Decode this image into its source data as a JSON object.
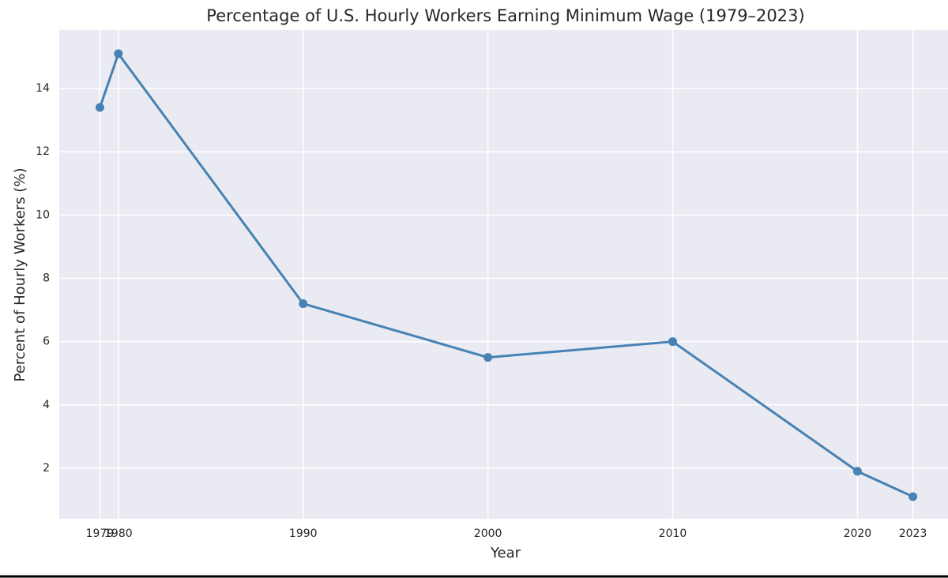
{
  "chart_data": {
    "type": "line",
    "title": "Percentage of U.S. Hourly Workers Earning Minimum Wage (1979–2023)",
    "x_label": "Year",
    "y_label": "Percent of Hourly Workers (%)",
    "x": [
      1979,
      1980,
      1990,
      2000,
      2010,
      2020,
      2023
    ],
    "series": [
      {
        "name": "Percent of Hourly Workers",
        "color": "#4682b4",
        "values": [
          13.4,
          15.1,
          7.2,
          5.5,
          6.0,
          1.9,
          1.1
        ]
      }
    ],
    "xlim": [
      1976.8,
      2024.9
    ],
    "xticks": [
      1979,
      1980,
      1990,
      2000,
      2010,
      2020,
      2023
    ],
    "ylim": [
      0.4,
      15.85
    ],
    "yticks": [
      2,
      4,
      6,
      8,
      10,
      12,
      14
    ],
    "grid": true,
    "background": "#eaeaf2"
  }
}
